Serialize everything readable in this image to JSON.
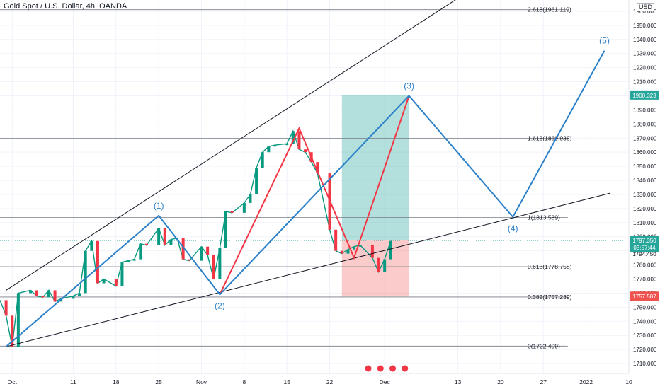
{
  "symbol_title": "Gold Spot / U.S. Dollar, 4h, OANDA",
  "currency_badge": "USD",
  "price_tags": {
    "current_price": "1797.350",
    "countdown": "03:57:44",
    "target_price": "1900.323",
    "stop_price": "1757.587",
    "near_price": "1794.450",
    "colors": {
      "current": "#26a69a",
      "target": "#26a69a",
      "stop": "#ef5350"
    }
  },
  "chart_data": {
    "type": "line",
    "xlabel": "",
    "ylabel": "",
    "x_ticks": [
      "Oct",
      "11",
      "18",
      "25",
      "Nov",
      "8",
      "15",
      "22",
      "Dec",
      "13",
      "20",
      "27",
      "2022",
      "10"
    ],
    "y_ticks": [
      1710,
      1720,
      1730,
      1740,
      1750,
      1760,
      1770,
      1780,
      1790,
      1800,
      1810,
      1820,
      1830,
      1840,
      1850,
      1860,
      1870,
      1880,
      1890,
      1900,
      1910,
      1920,
      1930,
      1940,
      1950,
      1960
    ],
    "y_tick_labels": [
      "1710.000",
      "1720.000",
      "1730.000",
      "1740.000",
      "1750.000",
      "1760.000",
      "1770.000",
      "1780.000",
      "1790.000",
      "1800.000",
      "1810.000",
      "1820.000",
      "1830.000",
      "1840.000",
      "1850.000",
      "1860.000",
      "1870.000",
      "1880.000",
      "1890.000",
      "1900.000",
      "1910.000",
      "1920.000",
      "1930.000",
      "1940.000",
      "1950.000",
      "1960.000"
    ],
    "ylim": [
      1703,
      1968
    ],
    "xlim": [
      "2021-09-29",
      "2022-01-10"
    ],
    "price_series": [
      [
        "2021-09-29",
        1755
      ],
      [
        "2021-09-30",
        1744
      ],
      [
        "2021-10-01",
        1722
      ],
      [
        "2021-10-02",
        1760
      ],
      [
        "2021-10-04",
        1762
      ],
      [
        "2021-10-05",
        1758
      ],
      [
        "2021-10-06",
        1757
      ],
      [
        "2021-10-07",
        1762
      ],
      [
        "2021-10-08",
        1754
      ],
      [
        "2021-10-09",
        1756
      ],
      [
        "2021-10-11",
        1758
      ],
      [
        "2021-10-12",
        1760
      ],
      [
        "2021-10-13",
        1790
      ],
      [
        "2021-10-14",
        1797
      ],
      [
        "2021-10-15",
        1767
      ],
      [
        "2021-10-16",
        1770
      ],
      [
        "2021-10-18",
        1765
      ],
      [
        "2021-10-19",
        1782
      ],
      [
        "2021-10-20",
        1783
      ],
      [
        "2021-10-21",
        1784
      ],
      [
        "2021-10-22",
        1795
      ],
      [
        "2021-10-23",
        1794
      ],
      [
        "2021-10-25",
        1806
      ],
      [
        "2021-10-26",
        1794
      ],
      [
        "2021-10-27",
        1798
      ],
      [
        "2021-10-28",
        1799
      ],
      [
        "2021-10-29",
        1784
      ],
      [
        "2021-10-30",
        1783
      ],
      [
        "2021-11-01",
        1793
      ],
      [
        "2021-11-02",
        1787
      ],
      [
        "2021-11-03",
        1770
      ],
      [
        "2021-11-04",
        1792
      ],
      [
        "2021-11-05",
        1818
      ],
      [
        "2021-11-06",
        1817
      ],
      [
        "2021-11-08",
        1824
      ],
      [
        "2021-11-09",
        1830
      ],
      [
        "2021-11-10",
        1849
      ],
      [
        "2021-11-11",
        1860
      ],
      [
        "2021-11-12",
        1864
      ],
      [
        "2021-11-13",
        1865
      ],
      [
        "2021-11-15",
        1866
      ],
      [
        "2021-11-16",
        1875
      ],
      [
        "2021-11-17",
        1862
      ],
      [
        "2021-11-18",
        1860
      ],
      [
        "2021-11-19",
        1853
      ],
      [
        "2021-11-20",
        1845
      ],
      [
        "2021-11-22",
        1805
      ],
      [
        "2021-11-23",
        1790
      ],
      [
        "2021-11-24",
        1788
      ],
      [
        "2021-11-25",
        1791
      ],
      [
        "2021-11-26",
        1793
      ],
      [
        "2021-11-27",
        1794
      ],
      [
        "2021-11-29",
        1785
      ],
      [
        "2021-11-30",
        1775
      ],
      [
        "2021-12-01",
        1784
      ],
      [
        "2021-12-02",
        1797
      ]
    ],
    "wave_path": [
      [
        "2021-09-30",
        1722
      ],
      [
        "2021-10-25",
        1815
      ],
      [
        "2021-11-04",
        1759
      ],
      [
        "2021-12-05",
        1900
      ],
      [
        "2021-12-22",
        1814
      ],
      [
        "2022-01-06",
        1932
      ]
    ],
    "red_path": [
      [
        "2021-11-04",
        1759
      ],
      [
        "2021-11-17",
        1877
      ],
      [
        "2021-11-26",
        1785
      ],
      [
        "2021-12-05",
        1900
      ]
    ],
    "channel_lines": [
      {
        "name": "upper",
        "from": [
          "2021-09-30",
          1762
        ],
        "to": [
          "2021-12-24",
          2000
        ]
      },
      {
        "name": "lower",
        "from": [
          "2021-09-30",
          1722
        ],
        "to": [
          "2022-01-07",
          1831
        ]
      }
    ],
    "wave_labels": [
      {
        "text": "(1)",
        "x": "2021-10-25",
        "y": 1815,
        "pos": "above"
      },
      {
        "text": "(2)",
        "x": "2021-11-04",
        "y": 1759,
        "pos": "below"
      },
      {
        "text": "(3)",
        "x": "2021-12-05",
        "y": 1900,
        "pos": "above"
      },
      {
        "text": "(4)",
        "x": "2021-12-22",
        "y": 1814,
        "pos": "below"
      },
      {
        "text": "(5)",
        "x": "2022-01-06",
        "y": 1932,
        "pos": "above"
      }
    ],
    "fib_levels": [
      {
        "label": "2.618(1961.119)",
        "value": 1961.119
      },
      {
        "label": "1.618(1869.938)",
        "value": 1869.938
      },
      {
        "label": "1(1813.589)",
        "value": 1813.589
      },
      {
        "label": "0.618(1778.758)",
        "value": 1778.758
      },
      {
        "label": "0.382(1757.239)",
        "value": 1757.239
      },
      {
        "label": "0(1722.409)",
        "value": 1722.409
      }
    ],
    "position_box": {
      "x_start": "2021-11-24",
      "x_end": "2021-12-05",
      "entry": 1797.35,
      "target": 1900.323,
      "stop": 1757.587,
      "profit_color": "#26a69a",
      "loss_color": "#ef5350"
    },
    "colors": {
      "wave": "#2a7fc9",
      "red": "#f23645",
      "channel": "#131722",
      "grid": "#f0f3fa"
    },
    "grid": true
  }
}
